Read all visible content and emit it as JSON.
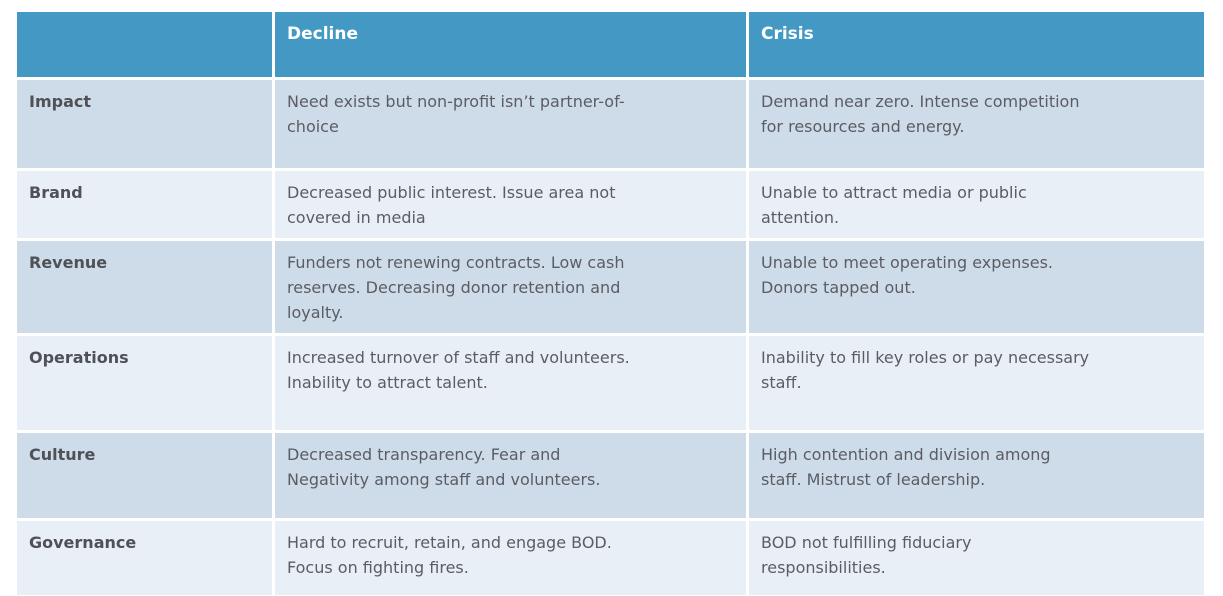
{
  "colors": {
    "header_bg": "#4398C4",
    "header_text": "#FFFFFF",
    "row_dark": "#CEDCE9",
    "row_light": "#E9EFF6",
    "label_text": "#4F5157",
    "body_text": "#5B5C64",
    "page_bg": "#FFFFFF"
  },
  "chart_data": {
    "type": "table",
    "title": "",
    "columns": [
      "",
      "Decline",
      "Crisis"
    ],
    "rows": [
      [
        "Impact",
        "Need exists but non-profit isn’t partner-of-\nchoice",
        "Demand near zero. Intense competition\nfor resources and energy."
      ],
      [
        "Brand",
        "Decreased public interest. Issue area not\ncovered in media",
        "Unable to attract media or public\nattention."
      ],
      [
        "Revenue",
        "Funders not renewing contracts. Low cash\nreserves. Decreasing donor retention and\nloyalty.",
        "Unable to meet operating expenses.\nDonors tapped out."
      ],
      [
        "Operations",
        "Increased turnover of staff and volunteers.\nInability to attract talent.",
        "Inability to fill key roles or pay necessary\nstaff."
      ],
      [
        "Culture",
        "Decreased transparency. Fear and\nNegativity among staff and volunteers.",
        "High contention and division among\nstaff. Mistrust of leadership."
      ],
      [
        "Governance",
        "Hard to recruit, retain, and engage BOD.\nFocus on fighting fires.",
        "BOD not fulfilling fiduciary\nresponsibilities."
      ]
    ],
    "layout": {
      "header_row_shaded": true,
      "body_row_shading": "alternating (dark, light, dark, light, dark, light)",
      "gridlines": "white 3px gaps between cells",
      "legend": "none"
    }
  }
}
